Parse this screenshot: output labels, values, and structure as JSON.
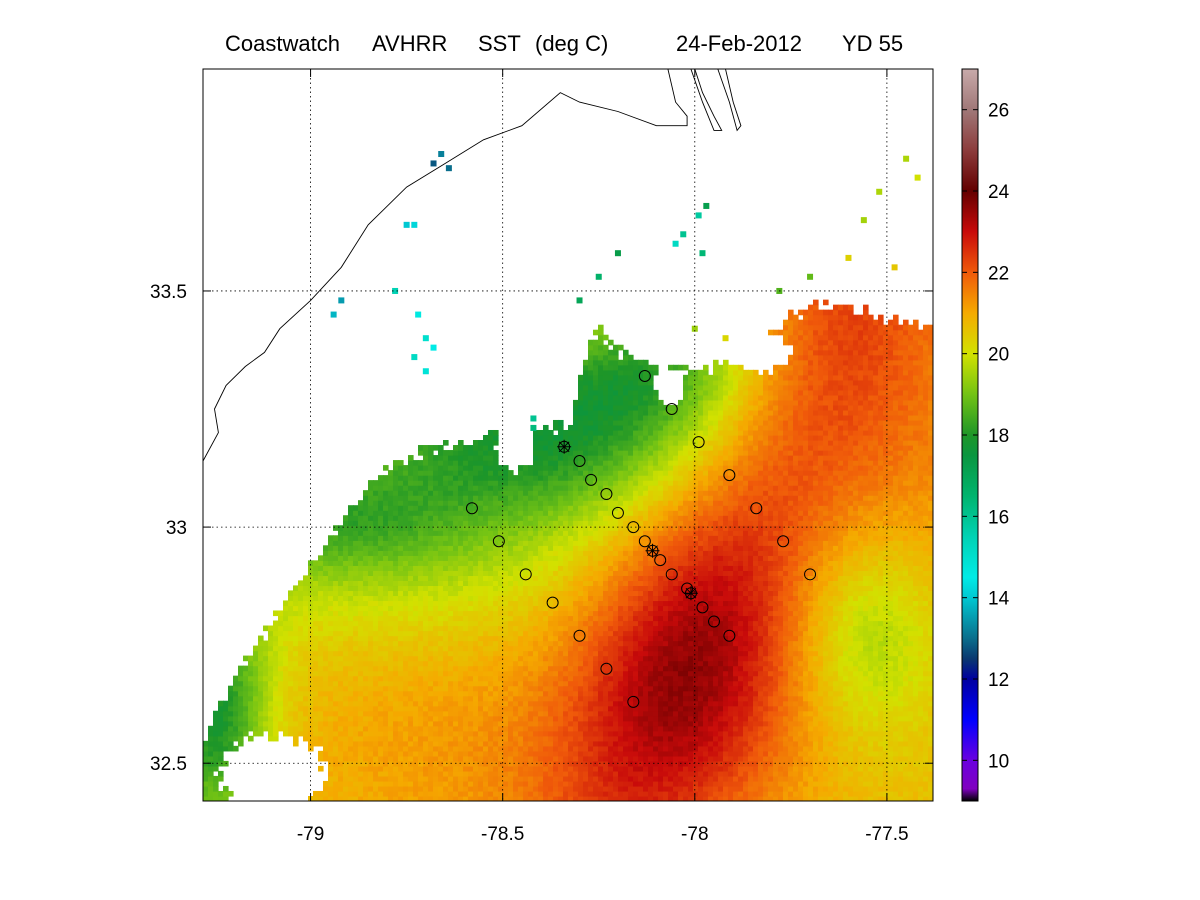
{
  "figure": {
    "title_parts": [
      "Coastwatch",
      "AVHRR",
      "SST",
      "(deg C)",
      "24-Feb-2012",
      "YD 55"
    ]
  },
  "chart_data": {
    "type": "heatmap",
    "title": "Coastwatch AVHRR SST (deg C) 24-Feb-2012 YD 55",
    "xlabel": "",
    "ylabel": "",
    "xlim": [
      -79.28,
      -77.38
    ],
    "ylim": [
      32.42,
      33.97
    ],
    "x_ticks": [
      -79,
      -78.5,
      -78,
      -77.5
    ],
    "y_ticks": [
      32.5,
      33,
      33.5
    ],
    "x_tick_labels": [
      "-79",
      "-78.5",
      "-78",
      "-77.5"
    ],
    "y_tick_labels": [
      "32.5",
      "33",
      "33.5"
    ],
    "grid": true,
    "colorbar": {
      "min": 9,
      "max": 27,
      "ticks": [
        10,
        12,
        14,
        16,
        18,
        20,
        22,
        24,
        26
      ],
      "tick_labels": [
        "10",
        "12",
        "14",
        "16",
        "18",
        "20",
        "22",
        "24",
        "26"
      ],
      "stops": [
        {
          "value": 9,
          "color": "#000000"
        },
        {
          "value": 9.3,
          "color": "#8000c0"
        },
        {
          "value": 10,
          "color": "#6a00e0"
        },
        {
          "value": 11,
          "color": "#0000ff"
        },
        {
          "value": 12,
          "color": "#0000a0"
        },
        {
          "value": 12.5,
          "color": "#0a3870"
        },
        {
          "value": 13,
          "color": "#0a6e8c"
        },
        {
          "value": 14,
          "color": "#00c8d2"
        },
        {
          "value": 14.5,
          "color": "#00ebe6"
        },
        {
          "value": 15.5,
          "color": "#00d2b4"
        },
        {
          "value": 16.5,
          "color": "#00b46e"
        },
        {
          "value": 17.5,
          "color": "#0a9640"
        },
        {
          "value": 18,
          "color": "#1e9628"
        },
        {
          "value": 19,
          "color": "#73c314"
        },
        {
          "value": 20,
          "color": "#d2e100"
        },
        {
          "value": 21,
          "color": "#f5aa00"
        },
        {
          "value": 22,
          "color": "#f05a0a"
        },
        {
          "value": 23,
          "color": "#c80a0a"
        },
        {
          "value": 24,
          "color": "#640000"
        },
        {
          "value": 25,
          "color": "#8c3c3c"
        },
        {
          "value": 26,
          "color": "#a07878"
        },
        {
          "value": 27,
          "color": "#c8aaaa"
        }
      ]
    },
    "sst_field": {
      "base": 20.6,
      "terms": [
        {
          "type": "gauss",
          "x": -78.0,
          "y": 32.7,
          "sx": 0.22,
          "sy": 0.25,
          "amp": 1.8
        },
        {
          "type": "band",
          "x": -77.9,
          "y": 32.95,
          "dx": 0.55,
          "dy": 1.0,
          "width": 0.17,
          "amp": 1.1
        },
        {
          "type": "gauss",
          "x": -78.8,
          "y": 33.05,
          "sx": 0.45,
          "sy": 0.18,
          "amp": -1.6
        },
        {
          "type": "gauss",
          "x": -78.35,
          "y": 33.2,
          "sx": 0.3,
          "sy": 0.12,
          "amp": -2.0
        },
        {
          "type": "gauss",
          "x": -78.1,
          "y": 33.35,
          "sx": 0.2,
          "sy": 0.1,
          "amp": -1.8
        },
        {
          "type": "gauss",
          "x": -79.25,
          "y": 32.6,
          "sx": 0.1,
          "sy": 0.18,
          "amp": -2.8
        },
        {
          "type": "gauss",
          "x": -77.55,
          "y": 32.78,
          "sx": 0.14,
          "sy": 0.16,
          "amp": -1.5
        },
        {
          "type": "gauss",
          "x": -78.6,
          "y": 32.55,
          "sx": 0.35,
          "sy": 0.2,
          "amp": 0.6
        },
        {
          "type": "gauss",
          "x": -77.5,
          "y": 33.2,
          "sx": 0.25,
          "sy": 0.35,
          "amp": 0.9
        },
        {
          "type": "gauss",
          "x": -78.95,
          "y": 33.0,
          "sx": 0.2,
          "sy": 0.07,
          "amp": -0.8
        }
      ],
      "cloud_edge": [
        [
          -79.28,
          32.55
        ],
        [
          -79.2,
          32.68
        ],
        [
          -79.08,
          32.82
        ],
        [
          -79.0,
          32.92
        ],
        [
          -78.9,
          33.04
        ],
        [
          -78.8,
          33.12
        ],
        [
          -78.7,
          33.16
        ],
        [
          -78.6,
          33.18
        ],
        [
          -78.5,
          33.2
        ],
        [
          -78.4,
          33.2
        ],
        [
          -78.32,
          33.22
        ],
        [
          -78.3,
          33.33
        ],
        [
          -78.25,
          33.42
        ],
        [
          -78.2,
          33.37
        ],
        [
          -78.12,
          33.35
        ],
        [
          -78.0,
          33.33
        ],
        [
          -77.9,
          33.35
        ],
        [
          -77.8,
          33.42
        ],
        [
          -77.7,
          33.47
        ],
        [
          -77.6,
          33.47
        ],
        [
          -77.5,
          33.44
        ],
        [
          -77.38,
          33.42
        ]
      ],
      "holes": [
        {
          "x": -78.47,
          "y": 33.17,
          "rx": 0.05,
          "ry": 0.05
        },
        {
          "x": -78.07,
          "y": 33.3,
          "rx": 0.04,
          "ry": 0.04
        },
        {
          "x": -79.1,
          "y": 32.48,
          "rx": 0.14,
          "ry": 0.08
        },
        {
          "x": -77.83,
          "y": 33.37,
          "rx": 0.08,
          "ry": 0.04
        }
      ],
      "speckles": [
        {
          "x": -78.68,
          "y": 33.77,
          "value": 12.8
        },
        {
          "x": -78.66,
          "y": 33.79,
          "value": 13.2
        },
        {
          "x": -78.64,
          "y": 33.76,
          "value": 13.0
        },
        {
          "x": -78.75,
          "y": 33.64,
          "value": 14.0
        },
        {
          "x": -78.73,
          "y": 33.64,
          "value": 14.2
        },
        {
          "x": -78.78,
          "y": 33.5,
          "value": 15.5
        },
        {
          "x": -78.72,
          "y": 33.45,
          "value": 14.6
        },
        {
          "x": -78.7,
          "y": 33.4,
          "value": 15.0
        },
        {
          "x": -78.68,
          "y": 33.38,
          "value": 14.5
        },
        {
          "x": -78.73,
          "y": 33.36,
          "value": 15.2
        },
        {
          "x": -78.7,
          "y": 33.33,
          "value": 14.8
        },
        {
          "x": -78.94,
          "y": 33.45,
          "value": 13.8
        },
        {
          "x": -78.92,
          "y": 33.48,
          "value": 13.5
        },
        {
          "x": -78.2,
          "y": 33.58,
          "value": 17.3
        },
        {
          "x": -78.25,
          "y": 33.53,
          "value": 16.6
        },
        {
          "x": -78.03,
          "y": 33.62,
          "value": 16.0
        },
        {
          "x": -78.05,
          "y": 33.6,
          "value": 15.2
        },
        {
          "x": -77.99,
          "y": 33.66,
          "value": 15.8
        },
        {
          "x": -77.97,
          "y": 33.68,
          "value": 17.2
        },
        {
          "x": -77.98,
          "y": 33.58,
          "value": 16.4
        },
        {
          "x": -78.42,
          "y": 33.23,
          "value": 16.0
        },
        {
          "x": -78.42,
          "y": 33.21,
          "value": 16.3
        },
        {
          "x": -78.3,
          "y": 33.48,
          "value": 17.0
        },
        {
          "x": -77.56,
          "y": 33.65,
          "value": 19.5
        },
        {
          "x": -77.52,
          "y": 33.71,
          "value": 19.6
        },
        {
          "x": -77.6,
          "y": 33.57,
          "value": 20.3
        },
        {
          "x": -77.7,
          "y": 33.53,
          "value": 18.8
        },
        {
          "x": -77.78,
          "y": 33.5,
          "value": 18.6
        },
        {
          "x": -77.45,
          "y": 33.78,
          "value": 19.6
        },
        {
          "x": -77.42,
          "y": 33.74,
          "value": 20.0
        },
        {
          "x": -77.48,
          "y": 33.55,
          "value": 20.5
        },
        {
          "x": -77.92,
          "y": 33.4,
          "value": 20.2
        },
        {
          "x": -78.0,
          "y": 33.42,
          "value": 19.4
        }
      ]
    },
    "stations": [
      {
        "lon": -78.13,
        "lat": 33.32,
        "marker": "circle"
      },
      {
        "lon": -78.06,
        "lat": 33.25,
        "marker": "circle"
      },
      {
        "lon": -77.99,
        "lat": 33.18,
        "marker": "circle"
      },
      {
        "lon": -77.91,
        "lat": 33.11,
        "marker": "circle"
      },
      {
        "lon": -77.84,
        "lat": 33.04,
        "marker": "circle"
      },
      {
        "lon": -77.77,
        "lat": 32.97,
        "marker": "circle"
      },
      {
        "lon": -77.7,
        "lat": 32.9,
        "marker": "circle"
      },
      {
        "lon": -78.34,
        "lat": 33.17,
        "marker": "star"
      },
      {
        "lon": -78.3,
        "lat": 33.14,
        "marker": "circle"
      },
      {
        "lon": -78.27,
        "lat": 33.1,
        "marker": "circle"
      },
      {
        "lon": -78.23,
        "lat": 33.07,
        "marker": "circle"
      },
      {
        "lon": -78.2,
        "lat": 33.03,
        "marker": "circle"
      },
      {
        "lon": -78.16,
        "lat": 33.0,
        "marker": "circle"
      },
      {
        "lon": -78.13,
        "lat": 32.97,
        "marker": "circle"
      },
      {
        "lon": -78.11,
        "lat": 32.95,
        "marker": "star"
      },
      {
        "lon": -78.09,
        "lat": 32.93,
        "marker": "circle"
      },
      {
        "lon": -78.06,
        "lat": 32.9,
        "marker": "circle"
      },
      {
        "lon": -78.02,
        "lat": 32.87,
        "marker": "circle"
      },
      {
        "lon": -78.01,
        "lat": 32.86,
        "marker": "star"
      },
      {
        "lon": -77.98,
        "lat": 32.83,
        "marker": "circle"
      },
      {
        "lon": -77.95,
        "lat": 32.8,
        "marker": "circle"
      },
      {
        "lon": -77.91,
        "lat": 32.77,
        "marker": "circle"
      },
      {
        "lon": -78.58,
        "lat": 33.04,
        "marker": "circle"
      },
      {
        "lon": -78.51,
        "lat": 32.97,
        "marker": "circle"
      },
      {
        "lon": -78.44,
        "lat": 32.9,
        "marker": "circle"
      },
      {
        "lon": -78.37,
        "lat": 32.84,
        "marker": "circle"
      },
      {
        "lon": -78.3,
        "lat": 32.77,
        "marker": "circle"
      },
      {
        "lon": -78.23,
        "lat": 32.7,
        "marker": "circle"
      },
      {
        "lon": -78.16,
        "lat": 32.63,
        "marker": "circle"
      }
    ],
    "coastline": [
      [
        -78.07,
        33.97
      ],
      [
        -78.05,
        33.9
      ],
      [
        -78.02,
        33.87
      ],
      [
        -78.02,
        33.85
      ],
      [
        -78.1,
        33.85
      ],
      [
        -78.2,
        33.88
      ],
      [
        -78.3,
        33.9
      ],
      [
        -78.35,
        33.92
      ],
      [
        -78.45,
        33.85
      ],
      [
        -78.55,
        33.82
      ],
      [
        -78.65,
        33.77
      ],
      [
        -78.75,
        33.72
      ],
      [
        -78.85,
        33.64
      ],
      [
        -78.92,
        33.55
      ],
      [
        -79.0,
        33.48
      ],
      [
        -79.08,
        33.42
      ],
      [
        -79.12,
        33.37
      ],
      [
        -79.17,
        33.34
      ],
      [
        -79.22,
        33.3
      ],
      [
        -79.25,
        33.25
      ],
      [
        -79.24,
        33.2
      ],
      [
        -79.28,
        33.14
      ]
    ],
    "barrier_islands": [
      [
        [
          -78.0,
          33.97
        ],
        [
          -77.98,
          33.92
        ],
        [
          -77.95,
          33.87
        ],
        [
          -77.93,
          33.84
        ],
        [
          -77.95,
          33.84
        ],
        [
          -77.98,
          33.9
        ],
        [
          -78.01,
          33.97
        ]
      ],
      [
        [
          -77.92,
          33.97
        ],
        [
          -77.9,
          33.9
        ],
        [
          -77.88,
          33.85
        ],
        [
          -77.89,
          33.84
        ],
        [
          -77.91,
          33.9
        ],
        [
          -77.94,
          33.97
        ]
      ]
    ]
  }
}
